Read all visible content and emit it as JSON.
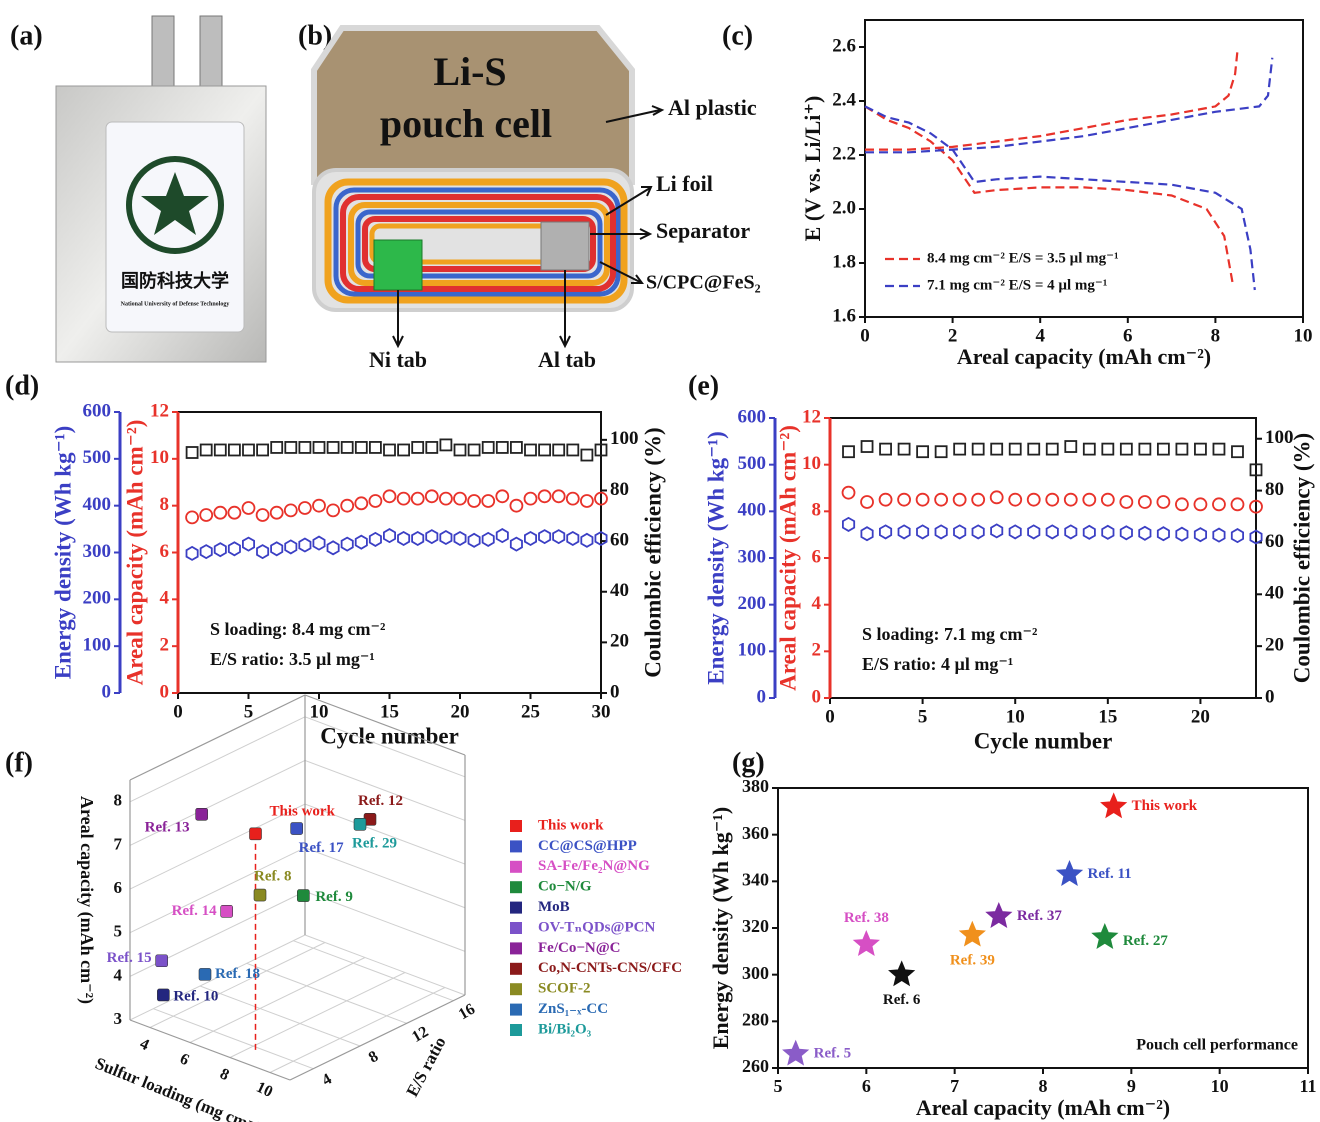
{
  "panel_labels": [
    "(a)",
    "(b)",
    "(c)",
    "(d)",
    "(e)",
    "(f)",
    "(g)"
  ],
  "photo": {
    "label_cn": "国防科技大学",
    "label_en": "National University of Defense Technology"
  },
  "diagram": {
    "title_line1": "Li-S",
    "title_line2": "pouch cell",
    "callouts": [
      "Al plastic",
      "Li foil",
      "Separator",
      "S/CPC@FeS₂",
      "Ni tab",
      "Al tab"
    ]
  },
  "chart_data": [
    {
      "type": "line",
      "xlabel": "Areal capacity (mAh cm⁻²)",
      "ylabel": "E (V vs. Li/Li⁺)",
      "xlim": [
        0,
        10
      ],
      "xticks": [
        0,
        2,
        4,
        6,
        8,
        10
      ],
      "ylim": [
        1.6,
        2.7
      ],
      "yticks": [
        1.6,
        1.8,
        {
          "value": 2,
          "label": "2.0"
        },
        2.2,
        2.4,
        2.6
      ],
      "legend": "lower left",
      "dashed": true,
      "series": [
        {
          "name": "8.4 mg cm⁻² E/S = 3.5 µl mg⁻¹",
          "color": "#e8322a",
          "x": [
            0,
            0.5,
            1,
            1.5,
            2,
            2.5,
            3,
            4,
            5,
            6,
            7,
            7.8,
            8.2,
            8.4,
            null,
            0,
            1,
            2,
            3,
            4,
            5,
            6,
            7,
            8,
            8.3,
            8.45,
            8.5
          ],
          "values": [
            2.38,
            2.33,
            2.3,
            2.25,
            2.18,
            2.06,
            2.07,
            2.08,
            2.08,
            2.07,
            2.05,
            2.0,
            1.9,
            1.72,
            null,
            2.22,
            2.22,
            2.23,
            2.25,
            2.27,
            2.3,
            2.33,
            2.35,
            2.38,
            2.42,
            2.5,
            2.58
          ]
        },
        {
          "name": "7.1 mg cm⁻² E/S = 4 µl mg⁻¹",
          "color": "#3b3fc4",
          "x": [
            0,
            0.5,
            1,
            1.5,
            2,
            2.5,
            3,
            4,
            5,
            6,
            7,
            8,
            8.6,
            8.8,
            8.9,
            null,
            0,
            1,
            2,
            3,
            4,
            5,
            6,
            7,
            8,
            9,
            9.2,
            9.3
          ],
          "values": [
            2.38,
            2.34,
            2.32,
            2.28,
            2.22,
            2.1,
            2.11,
            2.12,
            2.11,
            2.1,
            2.09,
            2.06,
            2.0,
            1.85,
            1.7,
            null,
            2.21,
            2.21,
            2.22,
            2.23,
            2.25,
            2.27,
            2.3,
            2.33,
            2.36,
            2.38,
            2.42,
            2.56
          ]
        }
      ]
    },
    {
      "type": "cycling",
      "xlabel": "Cycle number",
      "xlim": [
        0,
        30
      ],
      "xticks": [
        0,
        5,
        10,
        15,
        20,
        25,
        30
      ],
      "ylabel": "Energy density (Wh kg⁻¹)",
      "ylim": [
        0,
        600
      ],
      "yticks": [
        0,
        100,
        200,
        300,
        400,
        500,
        600
      ],
      "ycolor": "#3b3fc4",
      "y2label": "Areal capacity (mAh cm⁻²)",
      "y2lim": [
        0,
        12
      ],
      "y2ticks": [
        0,
        2,
        4,
        6,
        8,
        10,
        12
      ],
      "y2color": "#e8322a",
      "y3label": "Coulombic efficiency (%)",
      "y3lim": [
        0,
        111
      ],
      "y3ticks": [
        0,
        20,
        40,
        60,
        80,
        100
      ],
      "y3color": "#111111",
      "annotations": [
        "S loading: 8.4 mg cm⁻²",
        "E/S ratio: 3.5 µl mg⁻¹"
      ],
      "x": [
        1,
        2,
        3,
        4,
        5,
        6,
        7,
        8,
        9,
        10,
        11,
        12,
        13,
        14,
        15,
        16,
        17,
        18,
        19,
        20,
        21,
        22,
        23,
        24,
        25,
        26,
        27,
        28,
        29,
        30
      ],
      "series": [
        {
          "axis": "y",
          "marker": "hexagon",
          "color": "#3b3fc4",
          "values": [
            298,
            302,
            306,
            308,
            318,
            302,
            308,
            312,
            316,
            320,
            310,
            318,
            322,
            328,
            336,
            330,
            330,
            334,
            332,
            330,
            326,
            328,
            336,
            318,
            330,
            334,
            334,
            330,
            326,
            330
          ]
        },
        {
          "axis": "y2",
          "marker": "circle",
          "color": "#e8322a",
          "values": [
            7.5,
            7.6,
            7.7,
            7.7,
            7.9,
            7.6,
            7.7,
            7.8,
            7.9,
            8.0,
            7.8,
            8.0,
            8.1,
            8.2,
            8.4,
            8.3,
            8.3,
            8.4,
            8.3,
            8.3,
            8.2,
            8.2,
            8.4,
            8.0,
            8.3,
            8.4,
            8.4,
            8.3,
            8.2,
            8.3
          ]
        },
        {
          "axis": "y3",
          "marker": "square",
          "color": "#222222",
          "values": [
            95,
            96,
            96,
            96,
            96,
            96,
            97,
            97,
            97,
            97,
            97,
            97,
            97,
            97,
            96,
            96,
            97,
            97,
            98,
            96,
            96,
            97,
            97,
            97,
            96,
            96,
            96,
            96,
            94,
            96
          ]
        }
      ]
    },
    {
      "type": "cycling",
      "xlabel": "Cycle number",
      "xlim": [
        0,
        23
      ],
      "xticks": [
        0,
        5,
        10,
        15,
        20
      ],
      "ylabel": "Energy density (Wh kg⁻¹)",
      "ylim": [
        0,
        600
      ],
      "yticks": [
        0,
        100,
        200,
        300,
        400,
        500,
        600
      ],
      "ycolor": "#3b3fc4",
      "y2label": "Areal capacity (mAh cm⁻²)",
      "y2lim": [
        0,
        12
      ],
      "y2ticks": [
        0,
        2,
        4,
        6,
        8,
        10,
        12
      ],
      "y2color": "#e8322a",
      "y3label": "Coulombic efficiency (%)",
      "y3lim": [
        0,
        108
      ],
      "y3ticks": [
        0,
        20,
        40,
        60,
        80,
        100
      ],
      "y3color": "#111111",
      "annotations": [
        "S loading: 7.1 mg cm⁻²",
        "E/S ratio: 4 µl mg⁻¹"
      ],
      "x": [
        1,
        2,
        3,
        4,
        5,
        6,
        7,
        8,
        9,
        10,
        11,
        12,
        13,
        14,
        15,
        16,
        17,
        18,
        19,
        20,
        21,
        22,
        23
      ],
      "series": [
        {
          "axis": "y",
          "marker": "hexagon",
          "color": "#3b3fc4",
          "values": [
            372,
            352,
            356,
            356,
            356,
            356,
            356,
            356,
            358,
            356,
            356,
            356,
            356,
            355,
            355,
            354,
            353,
            352,
            351,
            350,
            349,
            348,
            345
          ]
        },
        {
          "axis": "y2",
          "marker": "circle",
          "color": "#e8322a",
          "values": [
            8.8,
            8.4,
            8.5,
            8.5,
            8.5,
            8.5,
            8.5,
            8.5,
            8.6,
            8.5,
            8.5,
            8.5,
            8.5,
            8.5,
            8.5,
            8.4,
            8.4,
            8.4,
            8.3,
            8.3,
            8.3,
            8.3,
            8.2
          ]
        },
        {
          "axis": "y3",
          "marker": "square",
          "color": "#222222",
          "values": [
            95,
            97,
            96,
            96,
            95,
            95,
            96,
            96,
            96,
            96,
            96,
            96,
            97,
            96,
            96,
            96,
            96,
            96,
            96,
            96,
            96,
            95,
            88
          ]
        }
      ]
    },
    {
      "type": "scatter3d",
      "xlabel": "Sulfur loading (mg cm⁻²)",
      "ylabel": "E/S ratio",
      "zlabel": "Areal capacity (mAh cm⁻²)",
      "xlim": [
        3,
        11
      ],
      "xticks": [
        4,
        6,
        8,
        10
      ],
      "ylim": [
        2,
        17
      ],
      "yticks": [
        4,
        8,
        12,
        16
      ],
      "zlim": [
        3,
        8.5
      ],
      "zticks": [
        3,
        4,
        5,
        6,
        7,
        8
      ],
      "series": [
        {
          "name": "This work",
          "label": "This work",
          "color": "#e8201c",
          "x": [
            8.4
          ],
          "y": [
            3.5
          ],
          "values": [
            8.0
          ]
        },
        {
          "name": "CC@CS@HPP",
          "label": "Ref. 17",
          "color": "#3b52c4",
          "x": [
            9.0
          ],
          "y": [
            6
          ],
          "values": [
            7.9
          ]
        },
        {
          "name": "SA-Fe/Fe₂N@NG",
          "label": "Ref. 14",
          "color": "#d64fc4",
          "x": [
            5.5
          ],
          "y": [
            6
          ],
          "values": [
            5.4
          ]
        },
        {
          "name": "Co−N/G",
          "label": "Ref. 9",
          "color": "#1f8a3c",
          "x": [
            7.0
          ],
          "y": [
            10
          ],
          "values": [
            5.5
          ]
        },
        {
          "name": "MoB",
          "label": "Ref. 10",
          "color": "#23267f",
          "x": [
            3.5
          ],
          "y": [
            4
          ],
          "values": [
            3.4
          ]
        },
        {
          "name": "OV-TₙQDs@PCN",
          "label": "Ref. 15",
          "color": "#7b52c9",
          "x": [
            4.0
          ],
          "y": [
            3
          ],
          "values": [
            4.4
          ]
        },
        {
          "name": "Fe/Co−N@C",
          "label": "Ref. 13",
          "color": "#8a2398",
          "x": [
            6.0
          ],
          "y": [
            3
          ],
          "values": [
            8.1
          ]
        },
        {
          "name": "Co,N-CNTs-CNS/CFC",
          "label": "Ref. 12",
          "color": "#8b1a1a",
          "x": [
            8.0
          ],
          "y": [
            14
          ],
          "values": [
            6.9
          ]
        },
        {
          "name": "SCOF-2",
          "label": "Ref. 8",
          "color": "#8a8a22",
          "x": [
            6.0
          ],
          "y": [
            8
          ],
          "values": [
            5.6
          ]
        },
        {
          "name": "ZnS₁₋ₓ-CC",
          "label": "Ref. 18",
          "color": "#2a6ab3",
          "x": [
            5.0
          ],
          "y": [
            5
          ],
          "values": [
            4.0
          ]
        },
        {
          "name": "Bi/Bi₂O₃",
          "label": "Ref. 29",
          "color": "#1d9a9a",
          "x": [
            7.5
          ],
          "y": [
            14
          ],
          "values": [
            6.7
          ]
        }
      ]
    },
    {
      "type": "scatter",
      "xlabel": "Areal capacity (mAh cm⁻²)",
      "ylabel": "Energy density (Wh kg⁻¹)",
      "xlim": [
        5,
        11
      ],
      "xticks": [
        5,
        6,
        7,
        8,
        9,
        10,
        11
      ],
      "ylim": [
        260,
        380
      ],
      "yticks": [
        260,
        280,
        300,
        320,
        340,
        360,
        380
      ],
      "annotation": "Pouch cell performance",
      "marker": "star",
      "labels": [
        "This work",
        "Ref. 11",
        "Ref. 37",
        "Ref. 27",
        "Ref. 38",
        "Ref. 39",
        "Ref. 6",
        "Ref. 5"
      ],
      "colors": [
        "#e8201c",
        "#3b52c4",
        "#7b2aa0",
        "#1f8a3c",
        "#d64fc4",
        "#f0901c",
        "#111111",
        "#8a5cc8"
      ],
      "x": [
        8.8,
        8.3,
        7.5,
        8.7,
        6.0,
        7.2,
        6.4,
        5.2
      ],
      "values": [
        372,
        343,
        325,
        316,
        313,
        317,
        300,
        266
      ]
    }
  ]
}
